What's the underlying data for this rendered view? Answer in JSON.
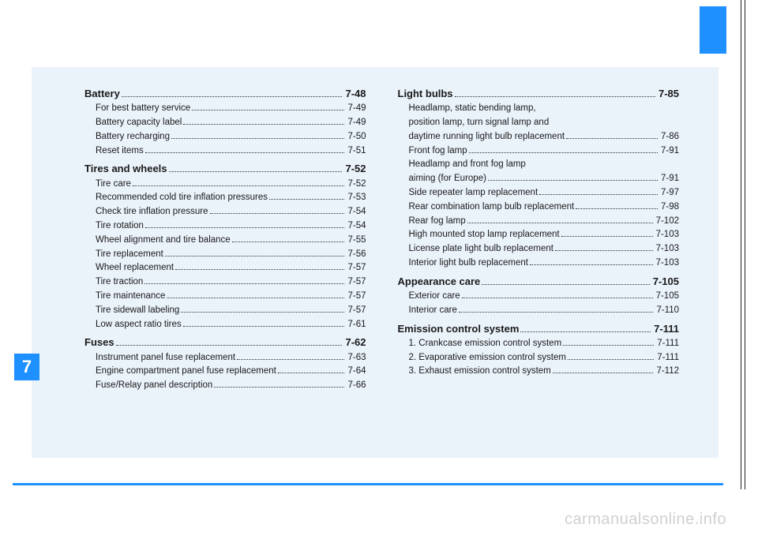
{
  "chapter_number": "7",
  "watermark": "carmanualsonline.info",
  "left_column": [
    {
      "type": "section",
      "label": "Battery",
      "page": "7-48"
    },
    {
      "type": "entry",
      "label": "For best battery service",
      "page": "7-49"
    },
    {
      "type": "entry",
      "label": "Battery capacity label",
      "page": "7-49"
    },
    {
      "type": "entry",
      "label": "Battery recharging",
      "page": "7-50"
    },
    {
      "type": "entry",
      "label": "Reset items",
      "page": "7-51"
    },
    {
      "type": "section",
      "label": "Tires and wheels",
      "page": "7-52"
    },
    {
      "type": "entry",
      "label": "Tire care",
      "page": "7-52"
    },
    {
      "type": "entry",
      "label": "Recommended cold tire inflation pressures",
      "page": "7-53"
    },
    {
      "type": "entry",
      "label": "Check tire inflation pressure",
      "page": "7-54"
    },
    {
      "type": "entry",
      "label": "Tire rotation",
      "page": "7-54"
    },
    {
      "type": "entry",
      "label": "Wheel alignment and tire balance",
      "page": "7-55"
    },
    {
      "type": "entry",
      "label": "Tire replacement",
      "page": "7-56"
    },
    {
      "type": "entry",
      "label": "Wheel replacement",
      "page": "7-57"
    },
    {
      "type": "entry",
      "label": "Tire traction",
      "page": "7-57"
    },
    {
      "type": "entry",
      "label": "Tire maintenance",
      "page": "7-57"
    },
    {
      "type": "entry",
      "label": "Tire sidewall labeling",
      "page": "7-57"
    },
    {
      "type": "entry",
      "label": "Low aspect ratio tires",
      "page": "7-61"
    },
    {
      "type": "section",
      "label": "Fuses",
      "page": "7-62"
    },
    {
      "type": "entry",
      "label": "Instrument panel fuse replacement",
      "page": "7-63"
    },
    {
      "type": "entry",
      "label": "Engine compartment panel fuse replacement",
      "page": "7-64"
    },
    {
      "type": "entry",
      "label": "Fuse/Relay panel description",
      "page": "7-66"
    }
  ],
  "right_column": [
    {
      "type": "section",
      "label": "Light bulbs",
      "page": "7-85"
    },
    {
      "type": "entry-multi",
      "lines": [
        "Headlamp, static bending lamp,",
        "position lamp, turn signal lamp and",
        "daytime running light bulb replacement"
      ],
      "page": "7-86"
    },
    {
      "type": "entry",
      "label": "Front fog lamp",
      "page": "7-91"
    },
    {
      "type": "entry-multi",
      "lines": [
        "Headlamp and front fog lamp",
        "aiming (for Europe)"
      ],
      "page": "7-91"
    },
    {
      "type": "entry",
      "label": "Side repeater lamp replacement",
      "page": "7-97"
    },
    {
      "type": "entry",
      "label": "Rear combination lamp bulb replacement",
      "page": "7-98"
    },
    {
      "type": "entry",
      "label": "Rear fog lamp",
      "page": "7-102"
    },
    {
      "type": "entry",
      "label": "High mounted stop lamp replacement",
      "page": "7-103"
    },
    {
      "type": "entry",
      "label": "License plate light bulb replacement",
      "page": "7-103"
    },
    {
      "type": "entry",
      "label": "Interior light bulb replacement",
      "page": "7-103"
    },
    {
      "type": "section",
      "label": "Appearance care",
      "page": "7-105"
    },
    {
      "type": "entry",
      "label": "Exterior care",
      "page": "7-105"
    },
    {
      "type": "entry",
      "label": "Interior care",
      "page": "7-110"
    },
    {
      "type": "section",
      "label": "Emission control system",
      "page": "7-111"
    },
    {
      "type": "entry",
      "label": "1.  Crankcase emission control system",
      "page": "7-111"
    },
    {
      "type": "entry",
      "label": "2.  Evaporative emission control system",
      "page": "7-111"
    },
    {
      "type": "entry",
      "label": "3.  Exhaust emission control system",
      "page": "7-112"
    }
  ]
}
